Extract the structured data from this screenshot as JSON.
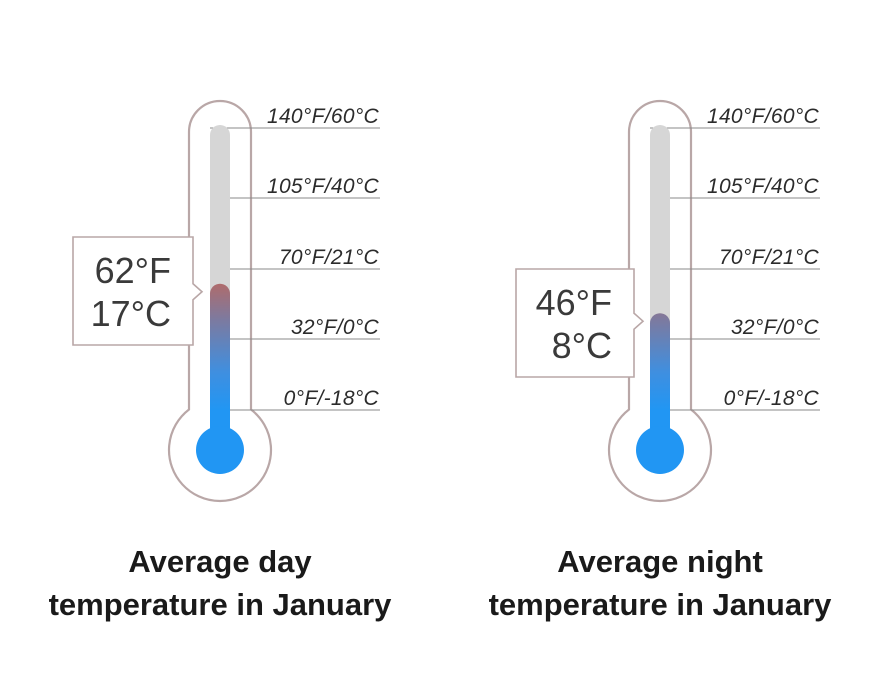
{
  "chart_data": [
    {
      "type": "thermometer",
      "title_lines": [
        "Average day",
        "temperature in January"
      ],
      "value_f": 62,
      "value_c": 17,
      "readout_lines": [
        "62°F",
        "17°C"
      ],
      "scale_f": [
        0,
        140
      ],
      "ticks": [
        {
          "value_f": 140,
          "label": "140°F/60°C"
        },
        {
          "value_f": 105,
          "label": "105°F/40°C"
        },
        {
          "value_f": 70,
          "label": "70°F/21°C"
        },
        {
          "value_f": 32,
          "label": "32°F/0°C"
        },
        {
          "value_f": 0,
          "label": "0°F/-18°C"
        }
      ]
    },
    {
      "type": "thermometer",
      "title_lines": [
        "Average night",
        "temperature in January"
      ],
      "value_f": 46,
      "value_c": 8,
      "readout_lines": [
        "46°F",
        "8°C"
      ],
      "scale_f": [
        0,
        140
      ],
      "ticks": [
        {
          "value_f": 140,
          "label": "140°F/60°C"
        },
        {
          "value_f": 105,
          "label": "105°F/40°C"
        },
        {
          "value_f": 70,
          "label": "70°F/21°C"
        },
        {
          "value_f": 32,
          "label": "32°F/0°C"
        },
        {
          "value_f": 0,
          "label": "0°F/-18°C"
        }
      ]
    }
  ],
  "colors": {
    "outline": "#b9a7a7",
    "tube_empty": "#d6d6d6",
    "mercury_cold": "#2196f3",
    "mercury_warm": "#d0624a",
    "grid_line": "#8a8a8a",
    "readout_border": "#b9a7a7"
  }
}
